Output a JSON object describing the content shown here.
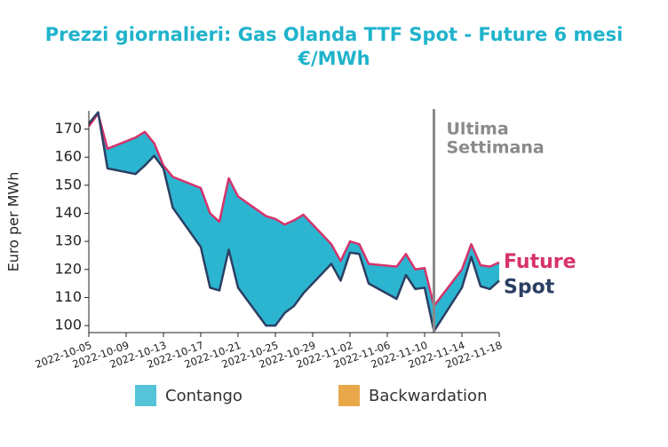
{
  "chart_data": {
    "type": "line",
    "title": "Prezzi giornalieri: Gas Olanda TTF Spot - Future 6 mesi",
    "subtitle": "€/MWh",
    "y_label": "Euro per MWh",
    "x": [
      "2022-10-05",
      "2022-10-06",
      "2022-10-07",
      "2022-10-10",
      "2022-10-11",
      "2022-10-12",
      "2022-10-13",
      "2022-10-14",
      "2022-10-17",
      "2022-10-18",
      "2022-10-19",
      "2022-10-20",
      "2022-10-21",
      "2022-10-24",
      "2022-10-25",
      "2022-10-26",
      "2022-10-27",
      "2022-10-28",
      "2022-10-31",
      "2022-11-01",
      "2022-11-02",
      "2022-11-03",
      "2022-11-04",
      "2022-11-07",
      "2022-11-08",
      "2022-11-09",
      "2022-11-10",
      "2022-11-11",
      "2022-11-14",
      "2022-11-15",
      "2022-11-16",
      "2022-11-17",
      "2022-11-18"
    ],
    "series": [
      {
        "name": "Future",
        "color": "#d6336c",
        "values": [
          171,
          175.5,
          163,
          167,
          169,
          165,
          157,
          153,
          149,
          140,
          137,
          152.5,
          146,
          139,
          138,
          136,
          137.5,
          139.5,
          129,
          123,
          130,
          129,
          122,
          121,
          125.5,
          120,
          120.5,
          107,
          120,
          129,
          121.5,
          121,
          122.5
        ]
      },
      {
        "name": "Spot",
        "color": "#2b3f63",
        "values": [
          172,
          176,
          156,
          154,
          157,
          160.5,
          156,
          142,
          128,
          113.5,
          112.5,
          127,
          113.5,
          100,
          100,
          104.5,
          107,
          111.5,
          122,
          116,
          126,
          125.5,
          115,
          109.5,
          118,
          113,
          113.5,
          98,
          113.5,
          124.5,
          114,
          113,
          116
        ]
      }
    ],
    "legend": [
      {
        "name": "Contango",
        "color": "#2bb5d0"
      },
      {
        "name": "Backwardation",
        "color": "#e8a84a"
      }
    ],
    "annotation": {
      "x": "2022-11-11",
      "lines": [
        "Ultima",
        "Settimana"
      ],
      "color": "#8a8a8a"
    },
    "xlim": [
      "2022-10-05",
      "2022-11-18"
    ],
    "xticks": [
      "2022-10-05",
      "2022-10-09",
      "2022-10-13",
      "2022-10-17",
      "2022-10-21",
      "2022-10-25",
      "2022-10-29",
      "2022-11-02",
      "2022-11-06",
      "2022-11-10",
      "2022-11-14",
      "2022-11-18"
    ],
    "ylim": [
      97.5,
      176.5
    ],
    "yticks": [
      100,
      110,
      120,
      130,
      140,
      150,
      160,
      170
    ],
    "title_color": "#1fb3cc"
  }
}
